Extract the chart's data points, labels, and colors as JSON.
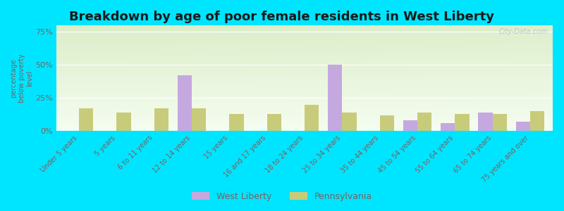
{
  "title": "Breakdown by age of poor female residents in West Liberty",
  "categories": [
    "Under 5 years",
    "5 years",
    "6 to 11 years",
    "12 to 14 years",
    "15 years",
    "16 and 17 years",
    "18 to 24 years",
    "25 to 34 years",
    "35 to 44 years",
    "45 to 54 years",
    "55 to 64 years",
    "65 to 74 years",
    "75 years and over"
  ],
  "west_liberty": [
    0,
    0,
    0,
    42,
    0,
    0,
    0,
    50,
    0,
    8,
    6,
    14,
    7
  ],
  "pennsylvania": [
    17,
    14,
    17,
    17,
    13,
    13,
    20,
    14,
    12,
    14,
    13,
    13,
    15
  ],
  "west_liberty_color": "#c5a8e0",
  "pennsylvania_color": "#c8cc7a",
  "bg_grad_top": "#dcedc8",
  "bg_grad_bottom": "#f1f8e9",
  "outer_bg": "#00e5ff",
  "ylabel": "percentage\nbelow poverty\nlevel",
  "ylim": [
    0,
    80
  ],
  "yticks": [
    0,
    25,
    50,
    75
  ],
  "ytick_labels": [
    "0%",
    "25%",
    "50%",
    "75%"
  ],
  "watermark": "City-Data.com",
  "bar_width": 0.38,
  "legend_label_wl": "West Liberty",
  "legend_label_pa": "Pennsylvania",
  "tick_color": "#7a6060",
  "grid_color": "#e8e0e0",
  "title_color": "#1a1a1a"
}
